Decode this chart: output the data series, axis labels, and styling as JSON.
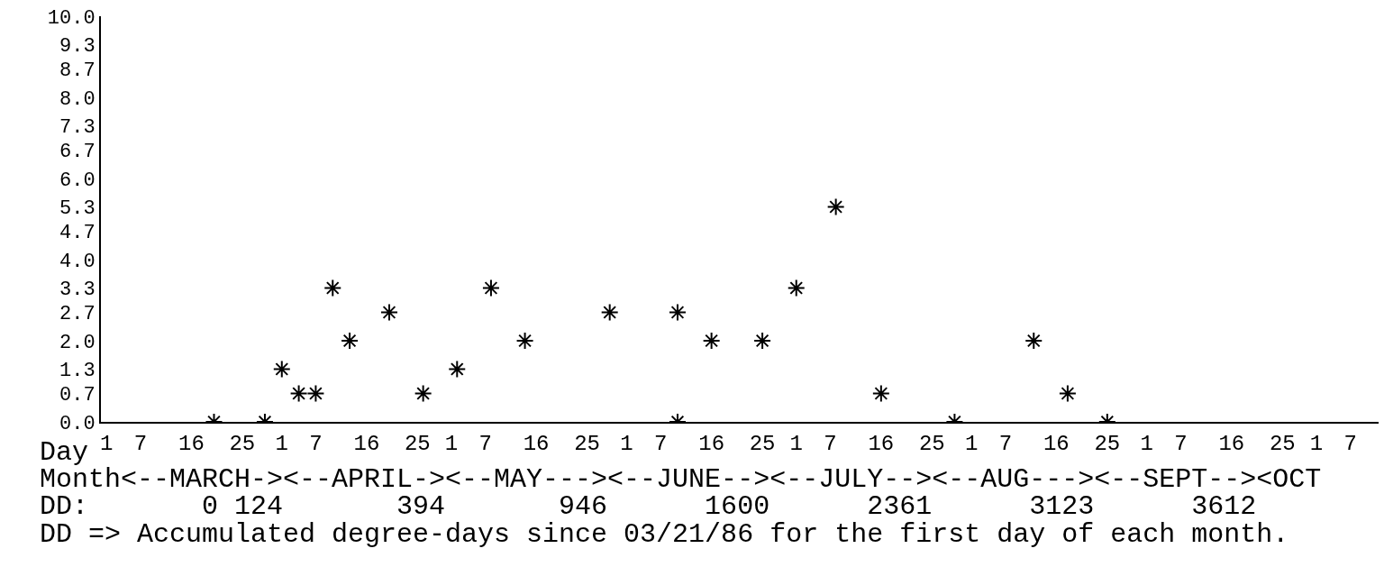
{
  "chart_data": {
    "type": "scatter",
    "xlabel": "Day",
    "x": [
      "--03-20",
      "--03-29",
      "--04-01",
      "--04-04",
      "--04-07",
      "--04-10",
      "--04-13",
      "--04-20",
      "--04-26",
      "--05-02",
      "--05-08",
      "--05-14",
      "--05-29",
      "--06-10",
      "--06-10",
      "--06-16",
      "--06-25",
      "--07-01",
      "--07-08",
      "--07-16",
      "--07-29",
      "--08-12",
      "--08-18",
      "--08-25"
    ],
    "values": [
      0,
      0,
      1.3,
      0.7,
      0.7,
      3.3,
      2.0,
      2.7,
      0.7,
      1.3,
      3.3,
      2.0,
      2.7,
      2.7,
      0,
      2.0,
      2.0,
      3.3,
      5.3,
      0.7,
      0,
      2.0,
      0.7,
      0
    ],
    "color": "#000000",
    "marker": "cross",
    "xlim": [
      "--02-28",
      "--10-12"
    ],
    "xticks": [
      {
        "value": "--03-01",
        "label": "1"
      },
      {
        "value": "--03-07",
        "label": "7"
      },
      {
        "value": "--03-16",
        "label": "16"
      },
      {
        "value": "--03-25",
        "label": "25"
      },
      {
        "value": "--04-01",
        "label": "1"
      },
      {
        "value": "--04-07",
        "label": "7"
      },
      {
        "value": "--04-16",
        "label": "16"
      },
      {
        "value": "--04-25",
        "label": "25"
      },
      {
        "value": "--05-01",
        "label": "1"
      },
      {
        "value": "--05-07",
        "label": "7"
      },
      {
        "value": "--05-16",
        "label": "16"
      },
      {
        "value": "--05-25",
        "label": "25"
      },
      {
        "value": "--06-01",
        "label": "1"
      },
      {
        "value": "--06-07",
        "label": "7"
      },
      {
        "value": "--06-16",
        "label": "16"
      },
      {
        "value": "--06-25",
        "label": "25"
      },
      {
        "value": "--07-01",
        "label": "1"
      },
      {
        "value": "--07-07",
        "label": "7"
      },
      {
        "value": "--07-16",
        "label": "16"
      },
      {
        "value": "--07-25",
        "label": "25"
      },
      {
        "value": "--08-01",
        "label": "1"
      },
      {
        "value": "--08-07",
        "label": "7"
      },
      {
        "value": "--08-16",
        "label": "16"
      },
      {
        "value": "--08-25",
        "label": "25"
      },
      {
        "value": "--09-01",
        "label": "1"
      },
      {
        "value": "--09-07",
        "label": "7"
      },
      {
        "value": "--09-16",
        "label": "16"
      },
      {
        "value": "--09-25",
        "label": "25"
      },
      {
        "value": "--10-01",
        "label": "1"
      },
      {
        "value": "--10-07",
        "label": "7"
      }
    ],
    "ylim": [
      0,
      10
    ],
    "yticks": [
      {
        "value": 0,
        "label": "0.0"
      },
      0.7,
      1.3,
      {
        "value": 2,
        "label": "2.0"
      },
      2.7,
      3.3,
      {
        "value": 4,
        "label": "4.0"
      },
      4.7,
      5.3,
      {
        "value": 6,
        "label": "6.0"
      },
      6.7,
      7.3,
      {
        "value": 8,
        "label": "8.0"
      },
      8.7,
      9.3,
      {
        "value": 10,
        "label": "10.0"
      }
    ],
    "grid": false,
    "annotations": [
      "Month<--MARCH-><--APRIL-><--MAY---><--JUNE--><--JULY--><--AUG---><--SEPT--><OCT",
      "DD:       0 124       394       946      1600      2361      3123      3612",
      "DD => Accumulated degree-days since 03/21/86 for the first day of each month."
    ]
  }
}
